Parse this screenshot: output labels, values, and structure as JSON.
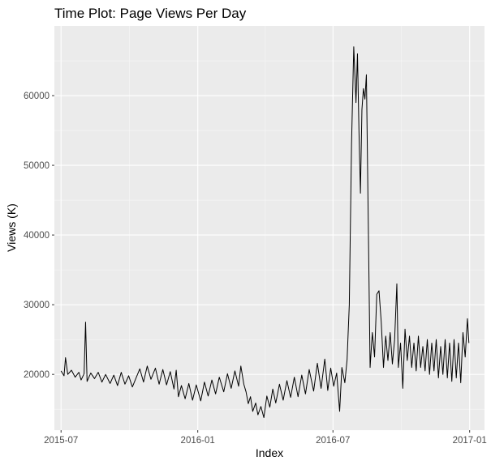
{
  "chart_data": {
    "type": "line",
    "title": "Time Plot: Page Views Per Day",
    "xlabel": "Index",
    "ylabel": "Views (K)",
    "x_ticks": [
      "2015-07",
      "2016-01",
      "2016-07",
      "2017-01"
    ],
    "y_ticks": [
      "20000",
      "30000",
      "40000",
      "50000",
      "60000"
    ],
    "ylim": [
      12000,
      70000
    ],
    "xlim": [
      "2015-06-22",
      "2017-01-21"
    ],
    "grid": true,
    "series": [
      {
        "name": "",
        "color": "#000000",
        "points": [
          [
            "2015-07-01",
            20500
          ],
          [
            "2015-07-05",
            19800
          ],
          [
            "2015-07-07",
            22400
          ],
          [
            "2015-07-10",
            20000
          ],
          [
            "2015-07-15",
            20600
          ],
          [
            "2015-07-20",
            19600
          ],
          [
            "2015-07-25",
            20300
          ],
          [
            "2015-07-28",
            19200
          ],
          [
            "2015-08-01",
            20100
          ],
          [
            "2015-08-03",
            27500
          ],
          [
            "2015-08-05",
            19000
          ],
          [
            "2015-08-10",
            20200
          ],
          [
            "2015-08-15",
            19400
          ],
          [
            "2015-08-20",
            20300
          ],
          [
            "2015-08-25",
            18900
          ],
          [
            "2015-08-30",
            20000
          ],
          [
            "2015-09-05",
            18700
          ],
          [
            "2015-09-10",
            19900
          ],
          [
            "2015-09-15",
            18400
          ],
          [
            "2015-09-20",
            20300
          ],
          [
            "2015-09-25",
            18600
          ],
          [
            "2015-09-30",
            19800
          ],
          [
            "2015-10-05",
            18200
          ],
          [
            "2015-10-10",
            19500
          ],
          [
            "2015-10-15",
            20800
          ],
          [
            "2015-10-20",
            18900
          ],
          [
            "2015-10-25",
            21200
          ],
          [
            "2015-10-30",
            19300
          ],
          [
            "2015-11-05",
            20900
          ],
          [
            "2015-11-10",
            18600
          ],
          [
            "2015-11-15",
            20700
          ],
          [
            "2015-11-20",
            18500
          ],
          [
            "2015-11-25",
            20400
          ],
          [
            "2015-11-30",
            17900
          ],
          [
            "2015-12-03",
            20600
          ],
          [
            "2015-12-06",
            16800
          ],
          [
            "2015-12-10",
            18400
          ],
          [
            "2015-12-15",
            16500
          ],
          [
            "2015-12-20",
            18700
          ],
          [
            "2015-12-25",
            16300
          ],
          [
            "2015-12-30",
            18500
          ],
          [
            "2016-01-05",
            16200
          ],
          [
            "2016-01-10",
            18900
          ],
          [
            "2016-01-15",
            16900
          ],
          [
            "2016-01-20",
            19200
          ],
          [
            "2016-01-25",
            17200
          ],
          [
            "2016-01-30",
            19600
          ],
          [
            "2016-02-05",
            17500
          ],
          [
            "2016-02-10",
            20100
          ],
          [
            "2016-02-15",
            18000
          ],
          [
            "2016-02-20",
            20500
          ],
          [
            "2016-02-25",
            18300
          ],
          [
            "2016-02-28",
            21200
          ],
          [
            "2016-03-03",
            18600
          ],
          [
            "2016-03-06",
            17500
          ],
          [
            "2016-03-09",
            15800
          ],
          [
            "2016-03-12",
            16800
          ],
          [
            "2016-03-15",
            14700
          ],
          [
            "2016-03-19",
            15900
          ],
          [
            "2016-03-22",
            14200
          ],
          [
            "2016-03-26",
            15400
          ],
          [
            "2016-03-30",
            13800
          ],
          [
            "2016-04-03",
            16900
          ],
          [
            "2016-04-07",
            15300
          ],
          [
            "2016-04-11",
            17900
          ],
          [
            "2016-04-15",
            15900
          ],
          [
            "2016-04-20",
            18600
          ],
          [
            "2016-04-25",
            16300
          ],
          [
            "2016-04-30",
            19100
          ],
          [
            "2016-05-05",
            16700
          ],
          [
            "2016-05-10",
            19600
          ],
          [
            "2016-05-15",
            16800
          ],
          [
            "2016-05-20",
            19900
          ],
          [
            "2016-05-25",
            17200
          ],
          [
            "2016-05-30",
            20700
          ],
          [
            "2016-06-05",
            17600
          ],
          [
            "2016-06-10",
            21600
          ],
          [
            "2016-06-15",
            18000
          ],
          [
            "2016-06-20",
            22200
          ],
          [
            "2016-06-24",
            17700
          ],
          [
            "2016-06-28",
            20900
          ],
          [
            "2016-07-02",
            18300
          ],
          [
            "2016-07-06",
            20200
          ],
          [
            "2016-07-10",
            14700
          ],
          [
            "2016-07-13",
            21000
          ],
          [
            "2016-07-17",
            18800
          ],
          [
            "2016-07-20",
            22100
          ],
          [
            "2016-07-23",
            30000
          ],
          [
            "2016-07-26",
            53000
          ],
          [
            "2016-07-29",
            67000
          ],
          [
            "2016-08-01",
            59000
          ],
          [
            "2016-08-03",
            66000
          ],
          [
            "2016-08-05",
            55000
          ],
          [
            "2016-08-07",
            46000
          ],
          [
            "2016-08-09",
            58000
          ],
          [
            "2016-08-11",
            61000
          ],
          [
            "2016-08-13",
            59500
          ],
          [
            "2016-08-15",
            63000
          ],
          [
            "2016-08-18",
            38000
          ],
          [
            "2016-08-20",
            21000
          ],
          [
            "2016-08-23",
            26000
          ],
          [
            "2016-08-26",
            22500
          ],
          [
            "2016-08-29",
            31500
          ],
          [
            "2016-09-01",
            32000
          ],
          [
            "2016-09-04",
            27500
          ],
          [
            "2016-09-07",
            21000
          ],
          [
            "2016-09-10",
            25500
          ],
          [
            "2016-09-13",
            22000
          ],
          [
            "2016-09-16",
            26000
          ],
          [
            "2016-09-19",
            21500
          ],
          [
            "2016-09-22",
            25000
          ],
          [
            "2016-09-25",
            33000
          ],
          [
            "2016-09-27",
            21000
          ],
          [
            "2016-09-30",
            24500
          ],
          [
            "2016-10-03",
            18000
          ],
          [
            "2016-10-06",
            26500
          ],
          [
            "2016-10-09",
            22000
          ],
          [
            "2016-10-12",
            25500
          ],
          [
            "2016-10-15",
            21000
          ],
          [
            "2016-10-18",
            24500
          ],
          [
            "2016-10-21",
            20500
          ],
          [
            "2016-10-24",
            25500
          ],
          [
            "2016-10-27",
            21000
          ],
          [
            "2016-10-30",
            24000
          ],
          [
            "2016-11-02",
            20500
          ],
          [
            "2016-11-05",
            25000
          ],
          [
            "2016-11-08",
            20000
          ],
          [
            "2016-11-11",
            24500
          ],
          [
            "2016-11-14",
            20500
          ],
          [
            "2016-11-17",
            25000
          ],
          [
            "2016-11-20",
            19500
          ],
          [
            "2016-11-23",
            24000
          ],
          [
            "2016-11-26",
            20000
          ],
          [
            "2016-11-29",
            25000
          ],
          [
            "2016-12-02",
            19500
          ],
          [
            "2016-12-05",
            24500
          ],
          [
            "2016-12-08",
            19000
          ],
          [
            "2016-12-11",
            25000
          ],
          [
            "2016-12-14",
            19500
          ],
          [
            "2016-12-17",
            24500
          ],
          [
            "2016-12-20",
            18800
          ],
          [
            "2016-12-23",
            26000
          ],
          [
            "2016-12-26",
            22500
          ],
          [
            "2016-12-29",
            28000
          ],
          [
            "2016-12-31",
            24500
          ]
        ]
      }
    ]
  }
}
